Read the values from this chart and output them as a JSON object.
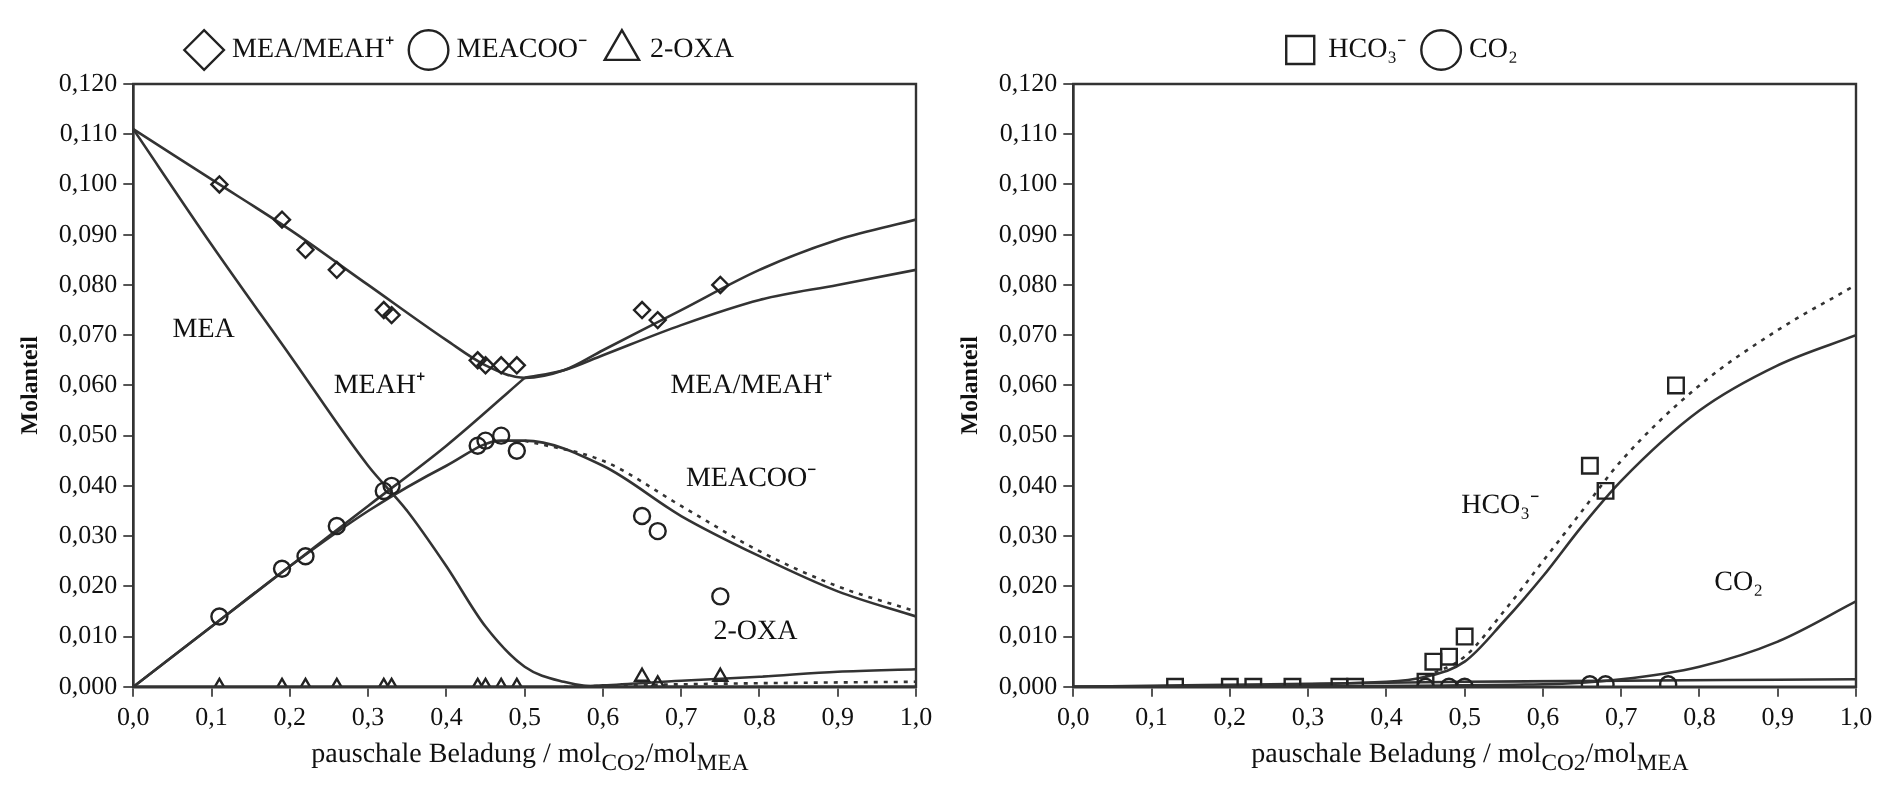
{
  "chart_data": [
    {
      "type": "scatter",
      "xlabel": "pauschale Beladung / mol$_{CO2}$/mol$_{MEA}$",
      "ylabel": "Molanteil",
      "legend": "top",
      "grid": false,
      "xlim": [
        0,
        1
      ],
      "xticks": [
        {
          "value": 0,
          "label": "0,0"
        },
        {
          "value": 0.1,
          "label": "0,1"
        },
        {
          "value": 0.2,
          "label": "0,2"
        },
        {
          "value": 0.3,
          "label": "0,3"
        },
        {
          "value": 0.4,
          "label": "0,4"
        },
        {
          "value": 0.5,
          "label": "0,5"
        },
        {
          "value": 0.6,
          "label": "0,6"
        },
        {
          "value": 0.7,
          "label": "0,7"
        },
        {
          "value": 0.8,
          "label": "0,8"
        },
        {
          "value": 0.9,
          "label": "0,9"
        },
        {
          "value": 1,
          "label": "1,0"
        }
      ],
      "ylim": [
        0,
        0.12
      ],
      "yticks": [
        {
          "value": 0,
          "label": "0,000"
        },
        {
          "value": 0.01,
          "label": "0,010"
        },
        {
          "value": 0.02,
          "label": "0,020"
        },
        {
          "value": 0.03,
          "label": "0,030"
        },
        {
          "value": 0.04,
          "label": "0,040"
        },
        {
          "value": 0.05,
          "label": "0,050"
        },
        {
          "value": 0.06,
          "label": "0,060"
        },
        {
          "value": 0.07,
          "label": "0,070"
        },
        {
          "value": 0.08,
          "label": "0,080"
        },
        {
          "value": 0.09,
          "label": "0,090"
        },
        {
          "value": 0.1,
          "label": "0,100"
        },
        {
          "value": 0.11,
          "label": "0,110"
        },
        {
          "value": 0.12,
          "label": "0,120"
        }
      ],
      "series": [
        {
          "name": "MEA/MEAH⁺",
          "marker": "diamond",
          "color": "#222222",
          "x": [
            0.11,
            0.19,
            0.22,
            0.26,
            0.32,
            0.33,
            0.44,
            0.45,
            0.47,
            0.49,
            0.65,
            0.67,
            0.75
          ],
          "values": [
            0.1,
            0.093,
            0.087,
            0.083,
            0.075,
            0.074,
            0.065,
            0.064,
            0.064,
            0.064,
            0.075,
            0.073,
            0.08
          ]
        },
        {
          "name": "MEACOO⁻",
          "marker": "circle",
          "color": "#222222",
          "x": [
            0.11,
            0.19,
            0.22,
            0.26,
            0.32,
            0.33,
            0.44,
            0.45,
            0.47,
            0.49,
            0.65,
            0.67,
            0.75
          ],
          "values": [
            0.014,
            0.0235,
            0.026,
            0.032,
            0.039,
            0.04,
            0.048,
            0.049,
            0.05,
            0.047,
            0.034,
            0.031,
            0.018
          ]
        },
        {
          "name": "2-OXA",
          "marker": "triangle",
          "color": "#222222",
          "x": [
            0.11,
            0.19,
            0.22,
            0.26,
            0.32,
            0.33,
            0.44,
            0.45,
            0.47,
            0.49,
            0.65,
            0.67,
            0.75
          ],
          "values": [
            0,
            0,
            0,
            0,
            0,
            0,
            0,
            0,
            0,
            0,
            0.002,
            0.0005,
            0.002
          ]
        },
        {
          "type": "line",
          "line_style": "solid",
          "color": "#333333",
          "x": [
            0,
            0.1,
            0.2,
            0.3,
            0.4,
            0.45,
            0.5,
            0.55,
            0.6,
            0.7,
            0.8,
            0.9,
            1
          ],
          "values": [
            0.111,
            0.101,
            0.091,
            0.08,
            0.069,
            0.064,
            0.0615,
            0.063,
            0.067,
            0.075,
            0.083,
            0.089,
            0.093
          ]
        },
        {
          "type": "line",
          "line_style": "solid",
          "color": "#333333",
          "x": [
            0.5,
            0.55,
            0.6,
            0.7,
            0.8,
            0.9,
            1
          ],
          "values": [
            0.0615,
            0.063,
            0.066,
            0.072,
            0.077,
            0.08,
            0.083
          ]
        },
        {
          "type": "line",
          "line_style": "solid",
          "color": "#333333",
          "x": [
            0,
            0.1,
            0.2,
            0.3,
            0.35,
            0.4,
            0.45,
            0.5,
            0.55,
            0.6,
            1
          ],
          "values": [
            0.111,
            0.088,
            0.066,
            0.044,
            0.035,
            0.024,
            0.012,
            0.004,
            0.001,
            0,
            0
          ]
        },
        {
          "type": "line",
          "line_style": "solid",
          "color": "#333333",
          "x": [
            0,
            0.1,
            0.2,
            0.3,
            0.4,
            0.5
          ],
          "values": [
            0,
            0.012,
            0.024,
            0.036,
            0.048,
            0.0615
          ]
        },
        {
          "type": "line",
          "line_style": "solid",
          "color": "#333333",
          "x": [
            0,
            0.1,
            0.2,
            0.3,
            0.4,
            0.47,
            0.5,
            0.6,
            0.7,
            0.8,
            0.9,
            1
          ],
          "values": [
            0,
            0.012,
            0.024,
            0.035,
            0.044,
            0.049,
            0.049,
            0.044,
            0.034,
            0.026,
            0.019,
            0.014
          ]
        },
        {
          "type": "line",
          "line_style": "dotted",
          "color": "#333333",
          "x": [
            0.5,
            0.6,
            0.7,
            0.8,
            0.9,
            1
          ],
          "values": [
            0.049,
            0.045,
            0.036,
            0.027,
            0.02,
            0.015
          ]
        },
        {
          "type": "line",
          "line_style": "solid",
          "color": "#333333",
          "x": [
            0,
            0.55,
            0.6,
            0.7,
            0.8,
            0.9,
            1
          ],
          "values": [
            0,
            0,
            0.0003,
            0.0012,
            0.002,
            0.003,
            0.0035
          ]
        },
        {
          "type": "line",
          "line_style": "dotted",
          "color": "#333333",
          "x": [
            0.55,
            0.7,
            0.85,
            1
          ],
          "values": [
            0,
            0.0005,
            0.0008,
            0.001
          ]
        }
      ],
      "annotations": [
        "MEA",
        "MEAH⁺",
        "MEA/MEAH⁺",
        "MEACOO⁻",
        "2-OXA"
      ]
    },
    {
      "type": "scatter",
      "xlabel": "pauschale Beladung / mol$_{CO2}$/mol$_{MEA}$",
      "ylabel": "Molanteil",
      "legend": "top",
      "grid": false,
      "xlim": [
        0,
        1
      ],
      "xticks": [
        {
          "value": 0,
          "label": "0,0"
        },
        {
          "value": 0.1,
          "label": "0,1"
        },
        {
          "value": 0.2,
          "label": "0,2"
        },
        {
          "value": 0.3,
          "label": "0,3"
        },
        {
          "value": 0.4,
          "label": "0,4"
        },
        {
          "value": 0.5,
          "label": "0,5"
        },
        {
          "value": 0.6,
          "label": "0,6"
        },
        {
          "value": 0.7,
          "label": "0,7"
        },
        {
          "value": 0.8,
          "label": "0,8"
        },
        {
          "value": 0.9,
          "label": "0,9"
        },
        {
          "value": 1,
          "label": "1,0"
        }
      ],
      "ylim": [
        0,
        0.12
      ],
      "yticks": [
        {
          "value": 0,
          "label": "0,000"
        },
        {
          "value": 0.01,
          "label": "0,010"
        },
        {
          "value": 0.02,
          "label": "0,020"
        },
        {
          "value": 0.03,
          "label": "0,030"
        },
        {
          "value": 0.04,
          "label": "0,040"
        },
        {
          "value": 0.05,
          "label": "0,050"
        },
        {
          "value": 0.06,
          "label": "0,060"
        },
        {
          "value": 0.07,
          "label": "0,070"
        },
        {
          "value": 0.08,
          "label": "0,080"
        },
        {
          "value": 0.09,
          "label": "0,090"
        },
        {
          "value": 0.1,
          "label": "0,100"
        },
        {
          "value": 0.11,
          "label": "0,110"
        },
        {
          "value": 0.12,
          "label": "0,120"
        }
      ],
      "series": [
        {
          "name": "HCO₃⁻",
          "marker": "square",
          "color": "#222222",
          "x": [
            0.13,
            0.2,
            0.23,
            0.28,
            0.34,
            0.36,
            0.45,
            0.46,
            0.48,
            0.5,
            0.66,
            0.68,
            0.77
          ],
          "values": [
            0,
            0,
            0,
            0,
            0,
            0,
            0.001,
            0.005,
            0.006,
            0.01,
            0.044,
            0.039,
            0.06
          ]
        },
        {
          "name": "CO₂",
          "marker": "circle",
          "color": "#222222",
          "x": [
            0.45,
            0.48,
            0.5,
            0.66,
            0.68,
            0.76
          ],
          "values": [
            0,
            0,
            0,
            0.0005,
            0.0005,
            0.0005
          ]
        },
        {
          "type": "line",
          "line_style": "solid",
          "color": "#333333",
          "x": [
            0,
            0.4,
            0.45,
            0.5,
            0.55,
            0.6,
            0.65,
            0.7,
            0.8,
            0.9,
            1
          ],
          "values": [
            0,
            0.001,
            0.002,
            0.005,
            0.013,
            0.022,
            0.032,
            0.041,
            0.055,
            0.064,
            0.07
          ]
        },
        {
          "type": "line",
          "line_style": "dotted",
          "color": "#333333",
          "x": [
            0.45,
            0.5,
            0.55,
            0.6,
            0.65,
            0.7,
            0.8,
            0.9,
            1
          ],
          "values": [
            0.002,
            0.006,
            0.015,
            0.025,
            0.035,
            0.045,
            0.06,
            0.071,
            0.08
          ]
        },
        {
          "type": "line",
          "line_style": "solid",
          "color": "#333333",
          "x": [
            0,
            0.6,
            0.7,
            0.8,
            0.9,
            1
          ],
          "values": [
            0,
            0.0005,
            0.0015,
            0.004,
            0.009,
            0.017
          ]
        },
        {
          "type": "line",
          "line_style": "solid",
          "color": "#333333",
          "x": [
            0,
            0.5,
            1
          ],
          "values": [
            0,
            0.001,
            0.0015
          ]
        }
      ],
      "annotations": [
        "HCO₃⁻",
        "CO₂"
      ]
    }
  ]
}
